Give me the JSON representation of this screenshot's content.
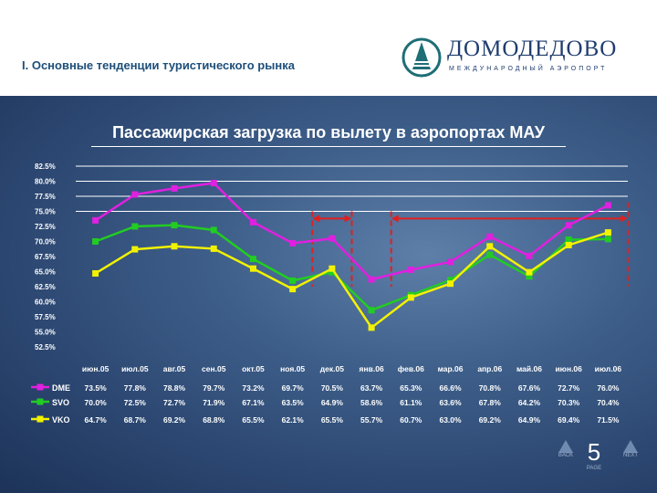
{
  "header": {
    "section_title": "I. Основные тенденции туристического рынка",
    "logo_name": "ДОМОДЕДОВО",
    "logo_sub": "МЕЖДУНАРОДНЫЙ АЭРОПОРТ"
  },
  "chart_data": {
    "type": "line",
    "title": "Пассажирская загрузка по вылету в аэропортах МАУ",
    "categories": [
      "июн.05",
      "июл.05",
      "авг.05",
      "сен.05",
      "окт.05",
      "ноя.05",
      "дек.05",
      "янв.06",
      "фев.06",
      "мар.06",
      "апр.06",
      "май.06",
      "июн.06",
      "июл.06"
    ],
    "ylim": [
      52.5,
      82.5
    ],
    "yticks": [
      "82.5%",
      "80.0%",
      "77.5%",
      "75.0%",
      "72.5%",
      "70.0%",
      "67.5%",
      "65.0%",
      "62.5%",
      "60.0%",
      "57.5%",
      "55.0%",
      "52.5%"
    ],
    "series": [
      {
        "name": "DME",
        "color": "#e020e0",
        "values": [
          73.5,
          77.8,
          78.8,
          79.7,
          73.2,
          69.7,
          70.5,
          63.7,
          65.3,
          66.6,
          70.8,
          67.6,
          72.7,
          76.0
        ],
        "labels": [
          "73.5%",
          "77.8%",
          "78.8%",
          "79.7%",
          "73.2%",
          "69.7%",
          "70.5%",
          "63.7%",
          "65.3%",
          "66.6%",
          "70.8%",
          "67.6%",
          "72.7%",
          "76.0%"
        ]
      },
      {
        "name": "SVO",
        "color": "#22cc22",
        "values": [
          70.0,
          72.5,
          72.7,
          71.9,
          67.1,
          63.5,
          64.9,
          58.6,
          61.1,
          63.6,
          67.8,
          64.2,
          70.3,
          70.4
        ],
        "labels": [
          "70.0%",
          "72.5%",
          "72.7%",
          "71.9%",
          "67.1%",
          "63.5%",
          "64.9%",
          "58.6%",
          "61.1%",
          "63.6%",
          "67.8%",
          "64.2%",
          "70.3%",
          "70.4%"
        ]
      },
      {
        "name": "VKO",
        "color": "#f2f200",
        "values": [
          64.7,
          68.7,
          69.2,
          68.8,
          65.5,
          62.1,
          65.5,
          55.7,
          60.7,
          63.0,
          69.2,
          64.9,
          69.4,
          71.5
        ],
        "labels": [
          "64.7%",
          "68.7%",
          "69.2%",
          "68.8%",
          "65.5%",
          "62.1%",
          "65.5%",
          "55.7%",
          "60.7%",
          "63.0%",
          "69.2%",
          "64.9%",
          "69.4%",
          "71.5%"
        ]
      }
    ],
    "grid": true,
    "legend": "table-bottom"
  },
  "footer": {
    "page_number": "5",
    "back_label": "BACK",
    "page_label": "PAGE",
    "next_label": "NEXT"
  }
}
